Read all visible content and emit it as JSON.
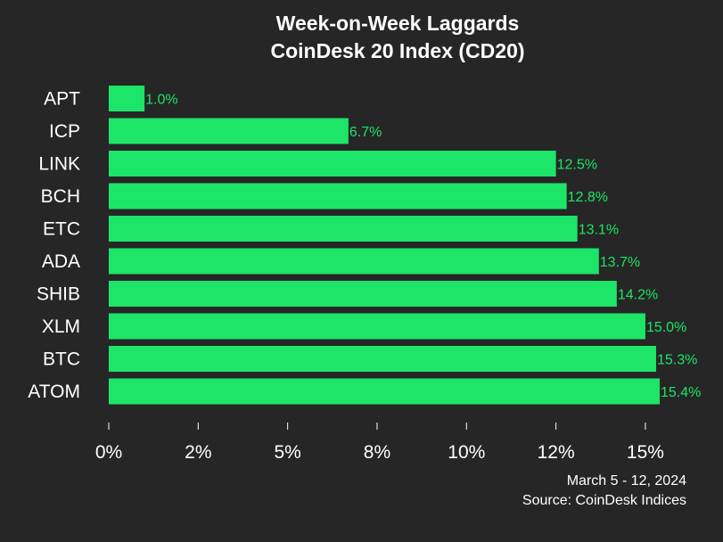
{
  "chart_data": {
    "type": "bar",
    "orientation": "horizontal",
    "title": "Week-on-Week Laggards",
    "subtitle": "CoinDesk 20 Index (CD20)",
    "categories": [
      "APT",
      "ICP",
      "LINK",
      "BCH",
      "ETC",
      "ADA",
      "SHIB",
      "XLM",
      "BTC",
      "ATOM"
    ],
    "values": [
      1.0,
      6.7,
      12.5,
      12.8,
      13.1,
      13.7,
      14.2,
      15.0,
      15.3,
      15.4
    ],
    "value_labels": [
      "1.0%",
      "6.7%",
      "12.5%",
      "12.8%",
      "13.1%",
      "13.7%",
      "14.2%",
      "15.0%",
      "15.3%",
      "15.4%"
    ],
    "x_tick_values": [
      0,
      2.5,
      5,
      7.5,
      10,
      12.5,
      15
    ],
    "x_tick_labels": [
      "0%",
      "2%",
      "5%",
      "8%",
      "10%",
      "12%",
      "15%"
    ],
    "xlim": [
      0,
      15.4
    ],
    "xlabel": "",
    "ylabel": "",
    "grid": false,
    "legend": "none",
    "bar_color": "#1ce567",
    "label_color": "#1ce567",
    "background_color": "#262626",
    "text_color": "#ffffff",
    "footer": {
      "date_range": "March 5 - 12, 2024",
      "source": "Source: CoinDesk Indices"
    }
  }
}
